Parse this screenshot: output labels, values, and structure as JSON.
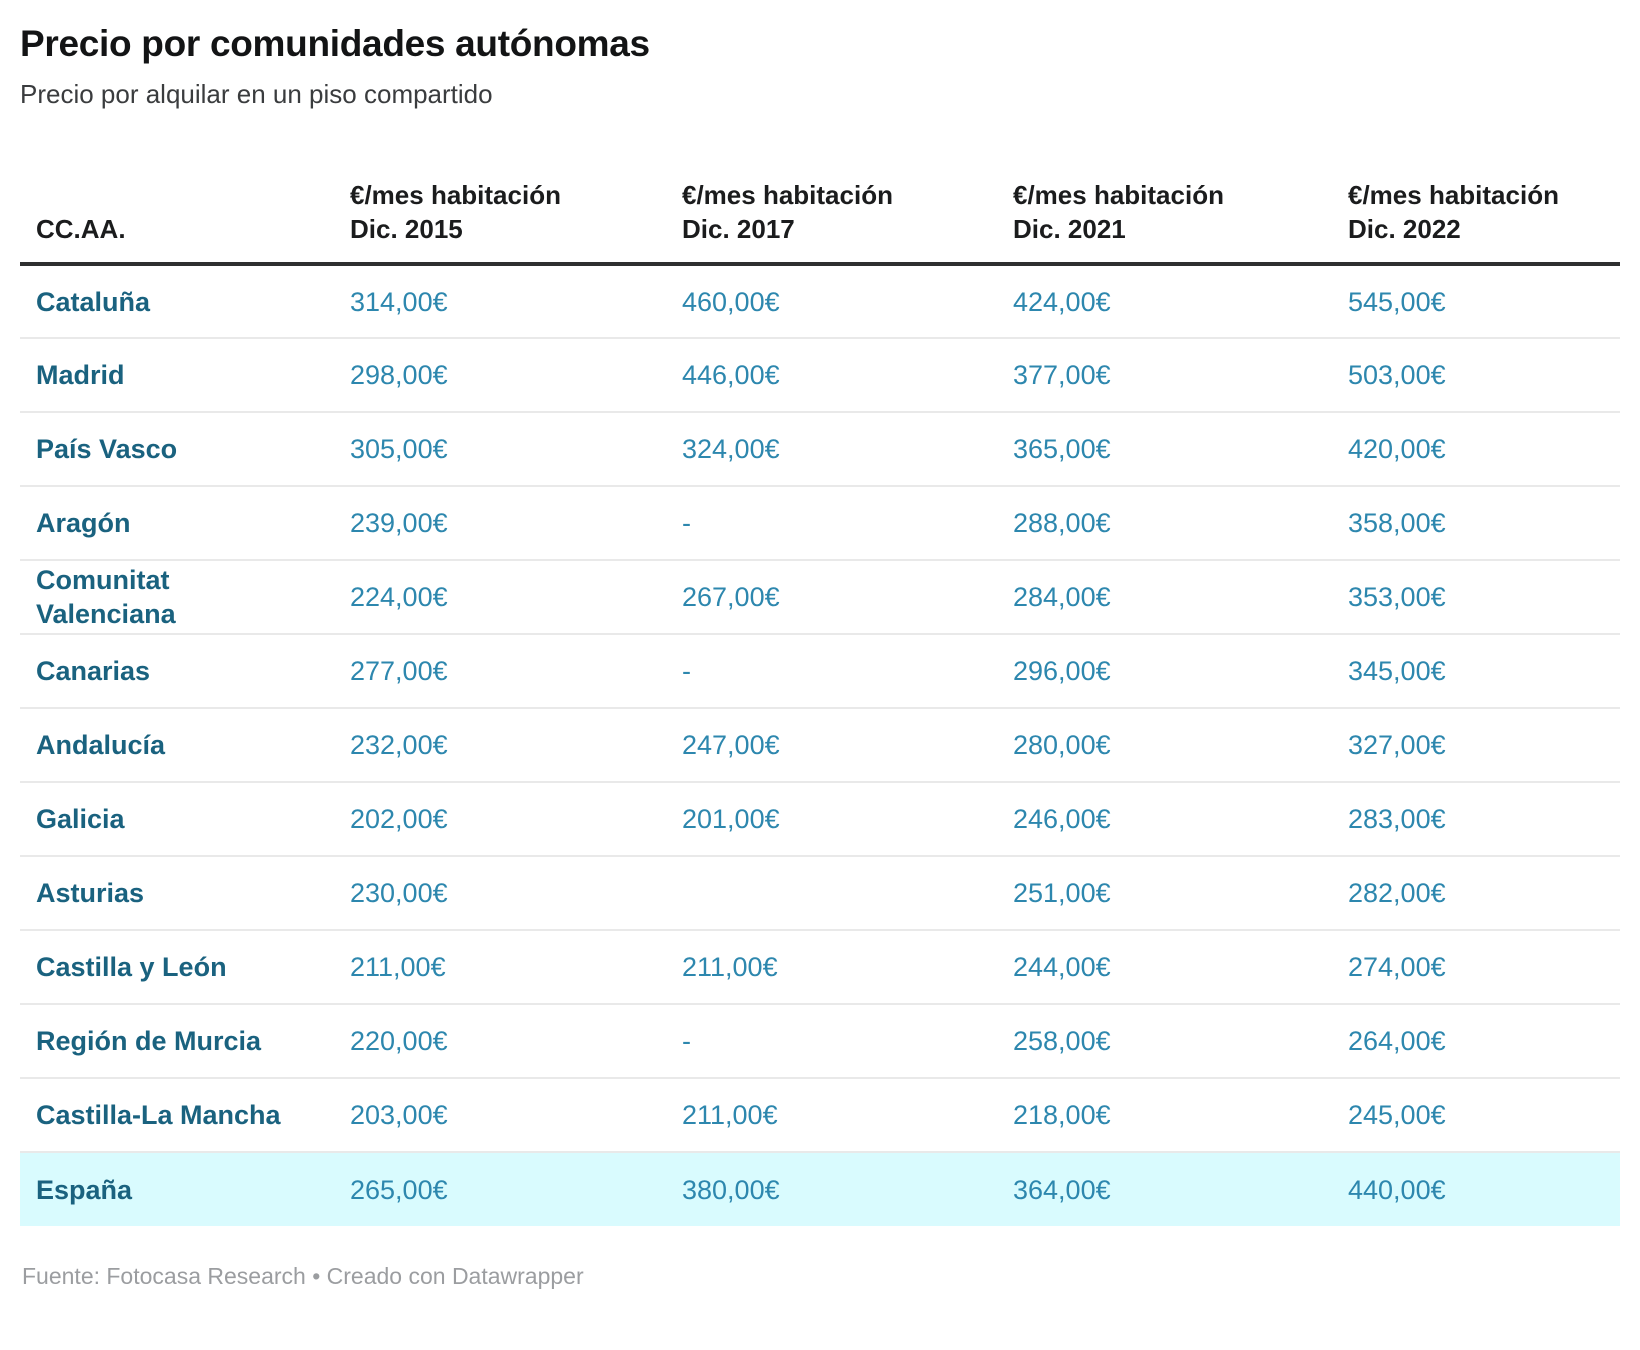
{
  "header": {
    "title": "Precio por comunidades autónomas",
    "subtitle": "Precio por alquilar en un piso compartido"
  },
  "table": {
    "columns": [
      {
        "label": "CC.AA."
      },
      {
        "label": "€/mes habitación\nDic. 2015"
      },
      {
        "label": "€/mes habitación\nDic. 2017"
      },
      {
        "label": "€/mes habitación\nDic. 2021"
      },
      {
        "label": "€/mes habitación\nDic. 2022"
      }
    ],
    "rows": [
      {
        "region": "Cataluña",
        "values": [
          "314,00€",
          "460,00€",
          "424,00€",
          "545,00€"
        ]
      },
      {
        "region": "Madrid",
        "values": [
          "298,00€",
          "446,00€",
          "377,00€",
          "503,00€"
        ]
      },
      {
        "region": "País Vasco",
        "values": [
          "305,00€",
          "324,00€",
          "365,00€",
          "420,00€"
        ]
      },
      {
        "region": "Aragón",
        "values": [
          "239,00€",
          "-",
          "288,00€",
          "358,00€"
        ]
      },
      {
        "region": "Comunitat Valenciana",
        "wrap": true,
        "values": [
          "224,00€",
          "267,00€",
          "284,00€",
          "353,00€"
        ]
      },
      {
        "region": "Canarias",
        "values": [
          "277,00€",
          "-",
          "296,00€",
          "345,00€"
        ]
      },
      {
        "region": "Andalucía",
        "values": [
          "232,00€",
          "247,00€",
          "280,00€",
          "327,00€"
        ]
      },
      {
        "region": "Galicia",
        "values": [
          "202,00€",
          "201,00€",
          "246,00€",
          "283,00€"
        ]
      },
      {
        "region": "Asturias",
        "values": [
          "230,00€",
          "",
          "251,00€",
          "282,00€"
        ]
      },
      {
        "region": "Castilla y León",
        "values": [
          "211,00€",
          "211,00€",
          "244,00€",
          "274,00€"
        ]
      },
      {
        "region": "Región de Murcia",
        "values": [
          "220,00€",
          "-",
          "258,00€",
          "264,00€"
        ]
      },
      {
        "region": "Castilla-La Mancha",
        "values": [
          "203,00€",
          "211,00€",
          "218,00€",
          "245,00€"
        ]
      },
      {
        "region": "España",
        "highlighted": true,
        "values": [
          "265,00€",
          "380,00€",
          "364,00€",
          "440,00€"
        ]
      }
    ]
  },
  "footer": {
    "text": "Fuente: Fotocasa Research • Creado con Datawrapper"
  },
  "colors": {
    "region_label": "#1a627f",
    "value_text": "#2d87ae",
    "highlight_row_bg": "#d9fbfe",
    "header_text": "#1b1c1d",
    "header_border": "#2e2f30",
    "row_separator": "#e9e9e9",
    "source_text": "#9b9da0"
  },
  "chart_data": {
    "type": "table",
    "title": "Precio por comunidades autónomas",
    "subtitle": "Precio por alquilar en un piso compartido",
    "columns": [
      "CC.AA.",
      "€/mes habitación Dic. 2015",
      "€/mes habitación Dic. 2017",
      "€/mes habitación Dic. 2021",
      "€/mes habitación Dic. 2022"
    ],
    "unit": "€/mes",
    "rows": [
      {
        "region": "Cataluña",
        "dic_2015": 314,
        "dic_2017": 460,
        "dic_2021": 424,
        "dic_2022": 545
      },
      {
        "region": "Madrid",
        "dic_2015": 298,
        "dic_2017": 446,
        "dic_2021": 377,
        "dic_2022": 503
      },
      {
        "region": "País Vasco",
        "dic_2015": 305,
        "dic_2017": 324,
        "dic_2021": 365,
        "dic_2022": 420
      },
      {
        "region": "Aragón",
        "dic_2015": 239,
        "dic_2017": null,
        "dic_2021": 288,
        "dic_2022": 358
      },
      {
        "region": "Comunitat Valenciana",
        "dic_2015": 224,
        "dic_2017": 267,
        "dic_2021": 284,
        "dic_2022": 353
      },
      {
        "region": "Canarias",
        "dic_2015": 277,
        "dic_2017": null,
        "dic_2021": 296,
        "dic_2022": 345
      },
      {
        "region": "Andalucía",
        "dic_2015": 232,
        "dic_2017": 247,
        "dic_2021": 280,
        "dic_2022": 327
      },
      {
        "region": "Galicia",
        "dic_2015": 202,
        "dic_2017": 201,
        "dic_2021": 246,
        "dic_2022": 283
      },
      {
        "region": "Asturias",
        "dic_2015": 230,
        "dic_2017": null,
        "dic_2021": 251,
        "dic_2022": 282
      },
      {
        "region": "Castilla y León",
        "dic_2015": 211,
        "dic_2017": 211,
        "dic_2021": 244,
        "dic_2022": 274
      },
      {
        "region": "Región de Murcia",
        "dic_2015": 220,
        "dic_2017": null,
        "dic_2021": 258,
        "dic_2022": 264
      },
      {
        "region": "Castilla-La Mancha",
        "dic_2015": 203,
        "dic_2017": 211,
        "dic_2021": 218,
        "dic_2022": 245
      },
      {
        "region": "España",
        "dic_2015": 265,
        "dic_2017": 380,
        "dic_2021": 364,
        "dic_2022": 440
      }
    ],
    "highlighted_row": "España",
    "missing_marker": "-",
    "source": "Fuente: Fotocasa Research • Creado con Datawrapper"
  }
}
